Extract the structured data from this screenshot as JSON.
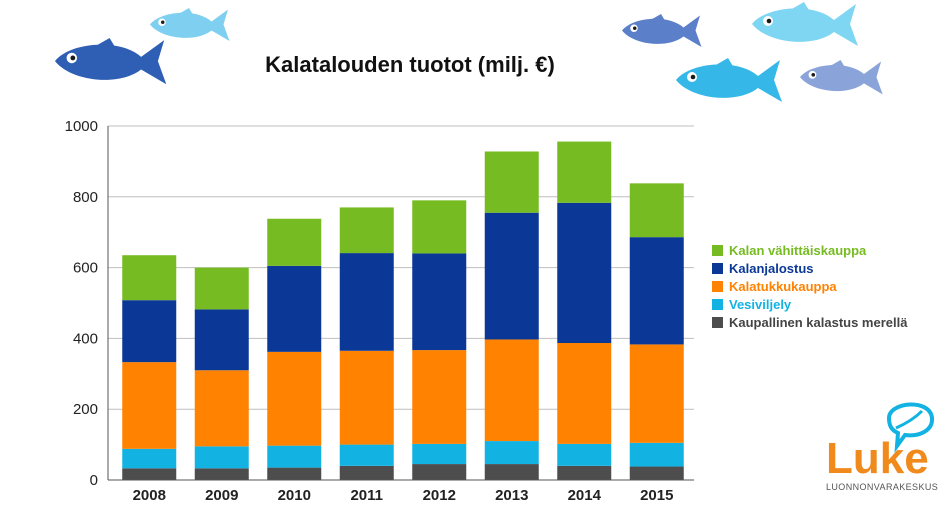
{
  "chart_data": {
    "type": "bar",
    "stacked": true,
    "title": "Kalatalouden tuotot (milj. €)",
    "categories": [
      "2008",
      "2009",
      "2010",
      "2011",
      "2012",
      "2013",
      "2014",
      "2015"
    ],
    "series": [
      {
        "name": "Kaupallinen kalastus merellä",
        "color": "#4d4d4d",
        "values": [
          33,
          33,
          35,
          40,
          45,
          45,
          40,
          38
        ]
      },
      {
        "name": "Vesiviljely",
        "color": "#12b3e3",
        "values": [
          55,
          62,
          62,
          60,
          57,
          65,
          62,
          67
        ]
      },
      {
        "name": "Kalatukkukauppa",
        "color": "#ff8200",
        "values": [
          245,
          215,
          265,
          265,
          265,
          287,
          285,
          278
        ]
      },
      {
        "name": "Kalanjalostus",
        "color": "#0b3896",
        "values": [
          175,
          172,
          243,
          276,
          273,
          358,
          396,
          303
        ]
      },
      {
        "name": "Kalan vähittäiskauppa",
        "color": "#76bb21",
        "values": [
          127,
          118,
          133,
          129,
          150,
          173,
          173,
          152
        ]
      }
    ],
    "legend_order": [
      "Kalan vähittäiskauppa",
      "Kalanjalostus",
      "Kalatukkukauppa",
      "Vesiviljely",
      "Kaupallinen kalastus merellä"
    ],
    "ylim": [
      0,
      1000
    ],
    "yticks": [
      0,
      200,
      400,
      600,
      800,
      1000
    ],
    "grid": true,
    "legend_position": "right"
  },
  "logo": {
    "name": "Luke",
    "subtitle": "LUONNONVARAKESKUS"
  },
  "icons": [
    "fish-icon"
  ]
}
